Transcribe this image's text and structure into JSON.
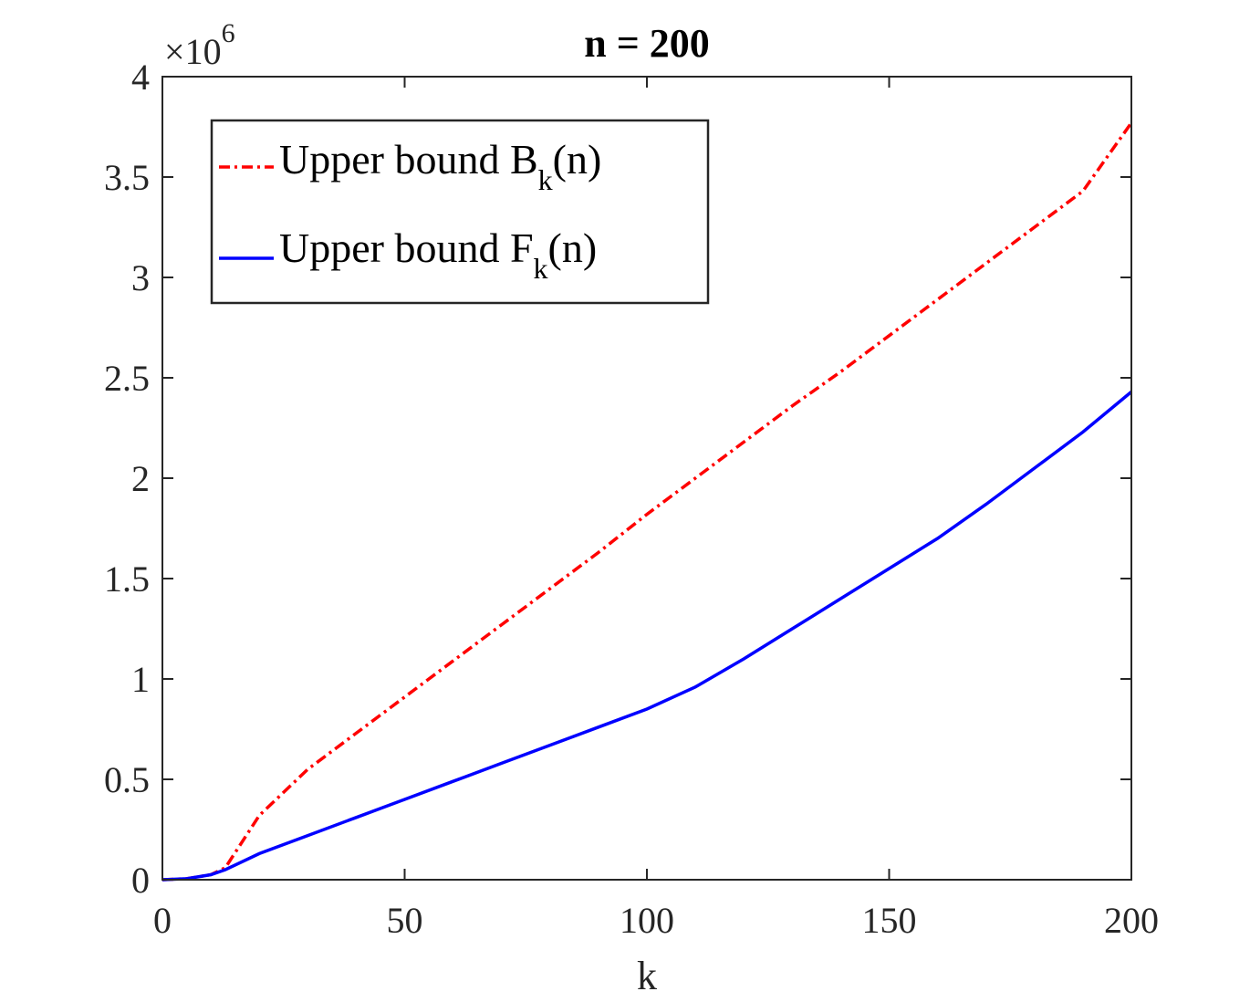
{
  "chart_data": {
    "type": "line",
    "title": "n = 200",
    "xlabel": "k",
    "ylabel": "",
    "xlim": [
      0,
      200
    ],
    "ylim": [
      0,
      4
    ],
    "y_exponent": {
      "base": "10",
      "power": "6"
    },
    "x_ticks": [
      "0",
      "50",
      "100",
      "150",
      "200"
    ],
    "y_ticks": [
      "0",
      "0.5",
      "1",
      "1.5",
      "2",
      "2.5",
      "3",
      "3.5",
      "4"
    ],
    "grid": false,
    "legend_position": "top-left",
    "series": [
      {
        "name": "Upper bound B_k(n)",
        "legend_main": "Upper bound B",
        "legend_sub": "k",
        "legend_tail": "(n)",
        "color": "#ff0000",
        "style": "dash-dot",
        "x": [
          0,
          5,
          10,
          13,
          20,
          30,
          40,
          50,
          60,
          70,
          80,
          90,
          100,
          110,
          120,
          130,
          140,
          150,
          160,
          170,
          180,
          190,
          200
        ],
        "y": [
          0,
          0.005,
          0.025,
          0.06,
          0.32,
          0.55,
          0.73,
          0.91,
          1.09,
          1.27,
          1.45,
          1.63,
          1.82,
          2.0,
          2.18,
          2.36,
          2.53,
          2.71,
          2.89,
          3.07,
          3.25,
          3.43,
          3.77
        ]
      },
      {
        "name": "Upper bound F_k(n)",
        "legend_main": "Upper bound F",
        "legend_sub": "k",
        "legend_tail": "(n)",
        "color": "#0000ff",
        "style": "solid",
        "x": [
          0,
          5,
          10,
          13,
          20,
          30,
          40,
          50,
          60,
          70,
          80,
          90,
          100,
          110,
          120,
          130,
          140,
          150,
          160,
          170,
          180,
          190,
          200
        ],
        "y": [
          0,
          0.005,
          0.025,
          0.05,
          0.13,
          0.22,
          0.31,
          0.4,
          0.49,
          0.58,
          0.67,
          0.76,
          0.85,
          0.96,
          1.1,
          1.25,
          1.4,
          1.55,
          1.7,
          1.87,
          2.05,
          2.23,
          2.43
        ]
      }
    ]
  }
}
